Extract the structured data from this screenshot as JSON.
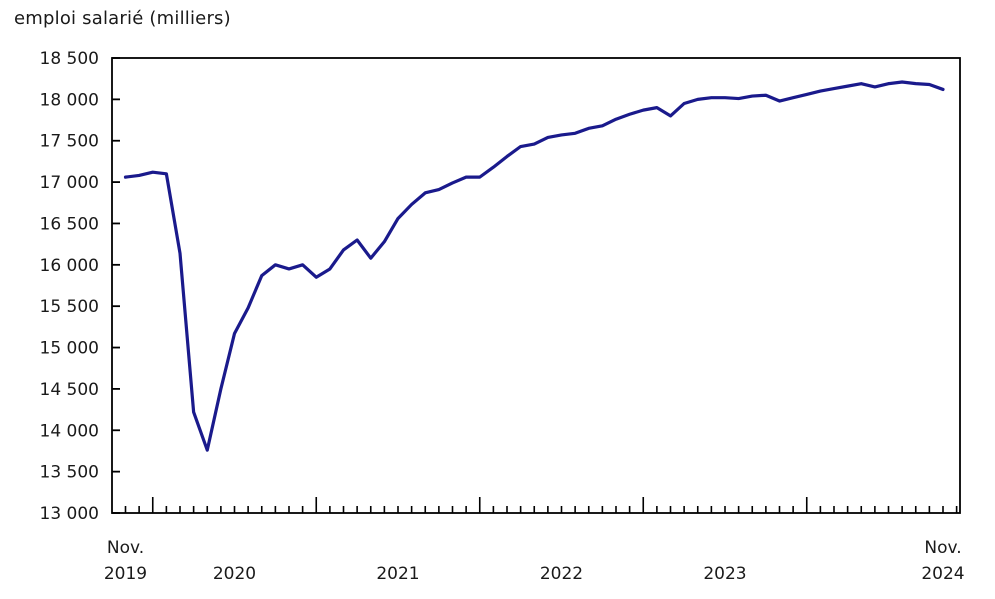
{
  "title": "emploi salarié (milliers)",
  "chart_data": {
    "type": "line",
    "title": "emploi salarié (milliers)",
    "ylabel": "emploi salarié (milliers)",
    "xlabel": "",
    "unit": "milliers",
    "legend": "none",
    "grid": "off",
    "frame": "box",
    "line_color": "#1a1a8c",
    "axis_color": "#000000",
    "text_color": "#1a1a1a",
    "ylim": [
      13000,
      18500
    ],
    "ytick_step": 500,
    "ytick_labels": [
      "13 000",
      "13 500",
      "14 000",
      "14 500",
      "15 000",
      "15 500",
      "16 000",
      "16 500",
      "17 000",
      "17 500",
      "18 000",
      "18 500"
    ],
    "x_first_label_line1": "Nov.",
    "x_first_label_line2": "2019",
    "x_last_label_line1": "Nov.",
    "x_last_label_line2": "2024",
    "x_year_labels": [
      "2020",
      "2021",
      "2022",
      "2023"
    ],
    "x": [
      "2019-11",
      "2019-12",
      "2020-01",
      "2020-02",
      "2020-03",
      "2020-04",
      "2020-05",
      "2020-06",
      "2020-07",
      "2020-08",
      "2020-09",
      "2020-10",
      "2020-11",
      "2020-12",
      "2021-01",
      "2021-02",
      "2021-03",
      "2021-04",
      "2021-05",
      "2021-06",
      "2021-07",
      "2021-08",
      "2021-09",
      "2021-10",
      "2021-11",
      "2021-12",
      "2022-01",
      "2022-02",
      "2022-03",
      "2022-04",
      "2022-05",
      "2022-06",
      "2022-07",
      "2022-08",
      "2022-09",
      "2022-10",
      "2022-11",
      "2022-12",
      "2023-01",
      "2023-02",
      "2023-03",
      "2023-04",
      "2023-05",
      "2023-06",
      "2023-07",
      "2023-08",
      "2023-09",
      "2023-10",
      "2023-11",
      "2023-12",
      "2024-01",
      "2024-02",
      "2024-03",
      "2024-04",
      "2024-05",
      "2024-06",
      "2024-07",
      "2024-08",
      "2024-09",
      "2024-10",
      "2024-11"
    ],
    "values": [
      17060,
      17080,
      17120,
      17100,
      16140,
      14220,
      13760,
      14500,
      15170,
      15480,
      15870,
      16000,
      15950,
      16000,
      15850,
      15950,
      16180,
      16300,
      16080,
      16280,
      16560,
      16730,
      16870,
      16910,
      16990,
      17060,
      17060,
      17180,
      17310,
      17430,
      17460,
      17540,
      17570,
      17590,
      17650,
      17680,
      17760,
      17820,
      17870,
      17900,
      17800,
      17950,
      18000,
      18020,
      18020,
      18010,
      18040,
      18050,
      17980,
      18020,
      18060,
      18100,
      18130,
      18160,
      18190,
      18150,
      18190,
      18210,
      18190,
      18180,
      18120
    ]
  }
}
